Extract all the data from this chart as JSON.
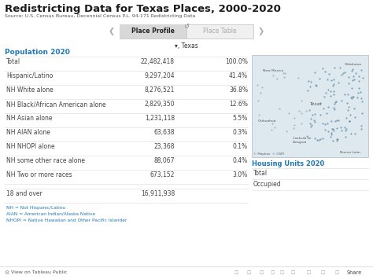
{
  "title": "Redistricting Data for Texas Places, 2000-2020",
  "source": "Source: U.S. Census Bureau, Decennial Census P.L. 94-171 Redistricting Data",
  "tab1": "Place Profile",
  "tab2": "Place Table",
  "place_label": "▾, Texas",
  "section1": "Population 2020",
  "table_rows": [
    [
      "Total",
      "22,482,418",
      "100.0%"
    ],
    [
      "Hispanic/Latino",
      "9,297,204",
      "41.4%"
    ],
    [
      "NH White alone",
      "8,276,521",
      "36.8%"
    ],
    [
      "NH Black/African American alone",
      "2,829,350",
      "12.6%"
    ],
    [
      "NH Asian alone",
      "1,231,118",
      "5.5%"
    ],
    [
      "NH AIAN alone",
      "63,638",
      "0.3%"
    ],
    [
      "NH NHOPI alone",
      "23,368",
      "0.1%"
    ],
    [
      "NH some other race alone",
      "88,067",
      "0.4%"
    ],
    [
      "NH Two or more races",
      "673,152",
      "3.0%"
    ]
  ],
  "extra_row": [
    "18 and over",
    "16,911,938",
    ""
  ],
  "footnotes": [
    "NH = Not Hispanic/Latino",
    "AIAN = American Indian/Alaska Native",
    "NHOPI = Native Hawaiian and Other Pacific Islander"
  ],
  "section2": "Housing Units 2020",
  "housing_rows": [
    "Total",
    "Occupied"
  ],
  "view_text": "View on Tableau Public",
  "background_color": "#ffffff",
  "title_color": "#1a1a1a",
  "source_color": "#555555",
  "section_color": "#1f77b4",
  "footnote_color": "#1f77b4",
  "tab_active_bg": "#d8d8d8",
  "tab_inactive_text": "#aaaaaa",
  "tab_border_color": "#c8c8c8",
  "table_line_color": "#e0e0e0",
  "row_label_color": "#444444",
  "row_value_color": "#444444",
  "map_bg": "#dde8ef",
  "map_border": "#b0b8c0",
  "map_dot_color": "#3a6b8a"
}
